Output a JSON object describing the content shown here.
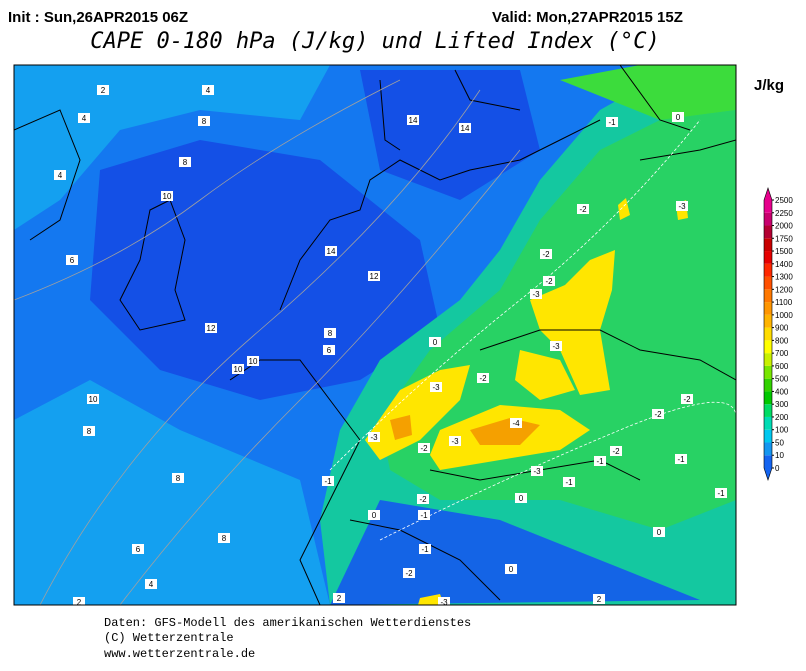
{
  "header": {
    "init": "Init : Sun,26APR2015 06Z",
    "valid": "Valid: Mon,27APR2015 15Z",
    "title": "CAPE 0-180 hPa (J/kg) und Lifted Index (°C)"
  },
  "legend": {
    "unit": "J/kg",
    "levels": [
      0,
      10,
      50,
      100,
      200,
      300,
      400,
      500,
      600,
      700,
      800,
      900,
      1000,
      1100,
      1200,
      1300,
      1400,
      1500,
      1750,
      2000,
      2250,
      2500
    ],
    "colors": [
      "#1464f0",
      "#1496f0",
      "#00c8f0",
      "#00dcb4",
      "#00dc64",
      "#00c800",
      "#32d200",
      "#78e600",
      "#c8f000",
      "#ffff00",
      "#ffdc00",
      "#ffb400",
      "#ff9600",
      "#ff7800",
      "#ff5000",
      "#ff2800",
      "#e60000",
      "#c80000",
      "#b40032",
      "#c8006e",
      "#e6008c"
    ]
  },
  "contour_labels": [
    2,
    4,
    4,
    8,
    8,
    4,
    10,
    6,
    14,
    14,
    14,
    12,
    12,
    8,
    6,
    10,
    10,
    10,
    8,
    8,
    8,
    6,
    4,
    2,
    2,
    -1,
    0,
    -2,
    -3,
    -2,
    -2,
    -3,
    -3,
    -2,
    -3,
    -3,
    -2,
    -3,
    -4,
    -3,
    -2,
    -1,
    -2,
    -2,
    -1,
    -1,
    0,
    -1,
    -1,
    -2,
    0,
    0,
    -1,
    -2,
    0,
    -1,
    0,
    -3,
    2
  ],
  "footer": [
    "Daten: GFS-Modell des amerikanischen Wetterdienstes",
    "(C) Wetterzentrale",
    "www.wetterzentrale.de"
  ]
}
